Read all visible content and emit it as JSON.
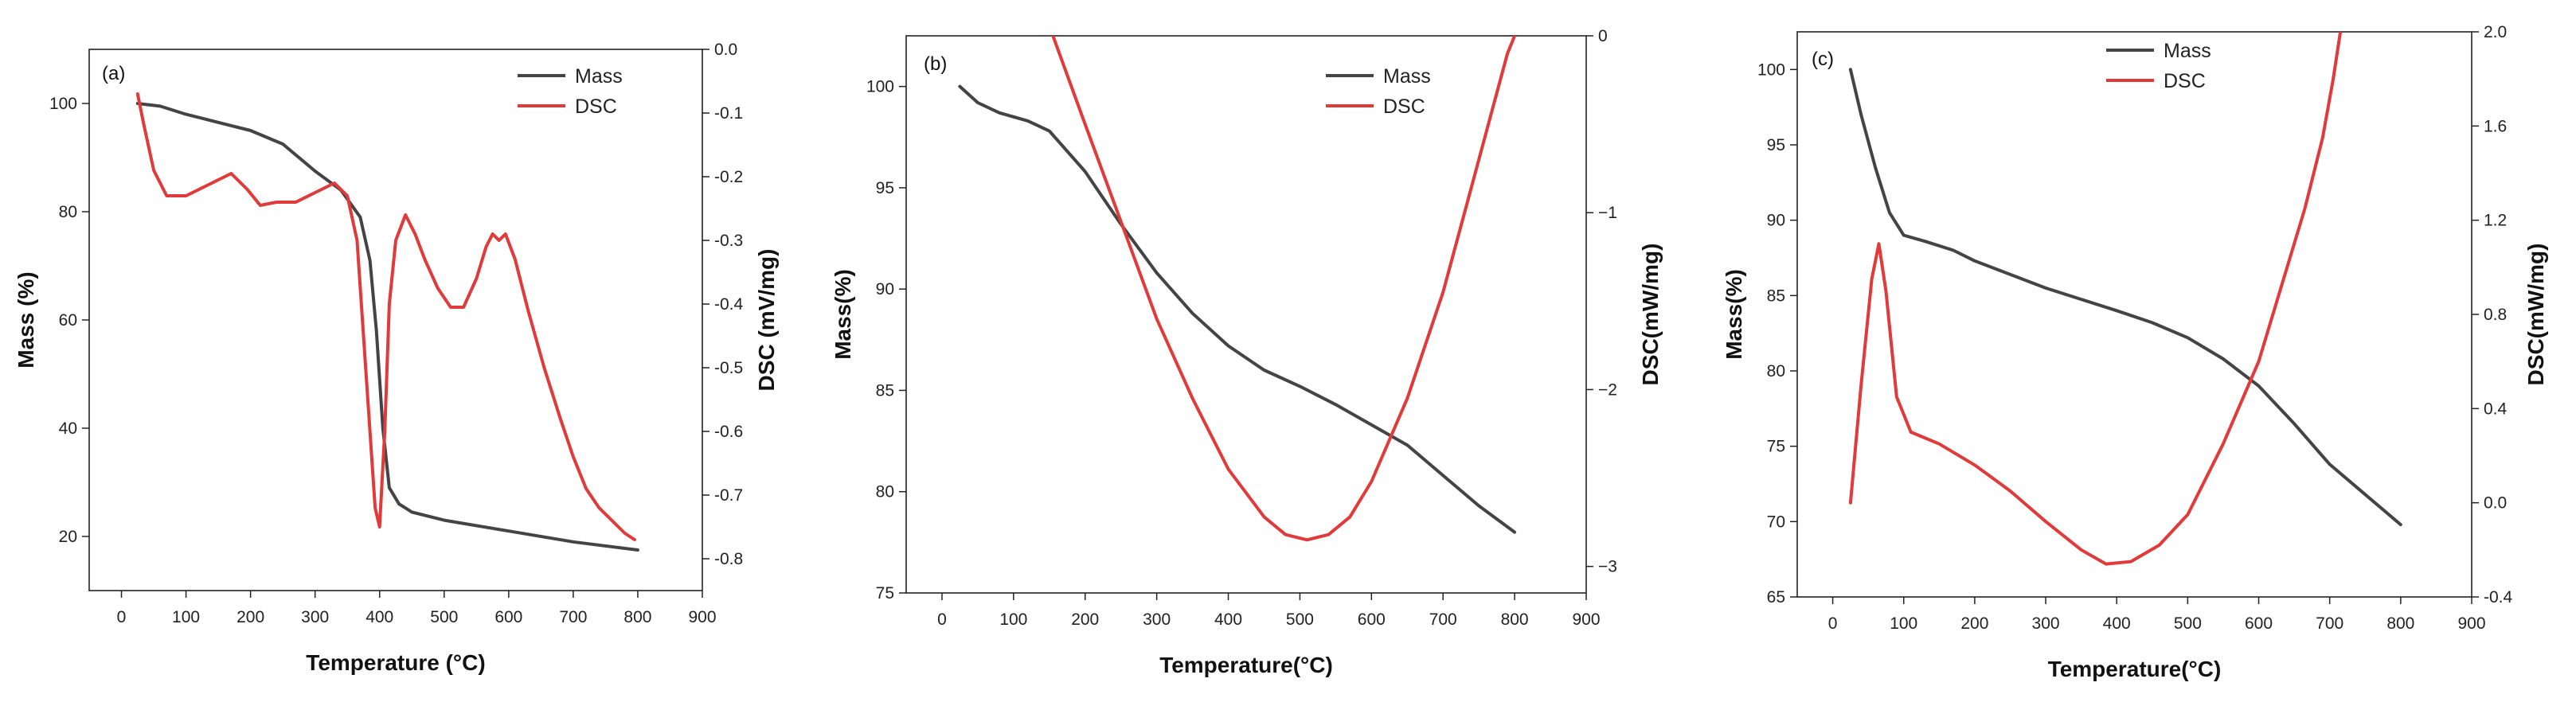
{
  "chart_data": [
    {
      "type": "line",
      "panel_label": "(a)",
      "xlabel": "Temperature (°C)",
      "ylabel": "Mass (%)",
      "y2label": "DSC (mV/mg)",
      "xlim": [
        -50,
        900
      ],
      "ylim": [
        10,
        110
      ],
      "y2lim": [
        -0.85,
        0.0
      ],
      "xticks": [
        0,
        100,
        200,
        300,
        400,
        500,
        600,
        700,
        800,
        900
      ],
      "yticks": [
        20,
        40,
        60,
        80,
        100
      ],
      "y2ticks": [
        -0.8,
        -0.7,
        -0.6,
        -0.5,
        -0.4,
        -0.3,
        -0.2,
        -0.1,
        0.0
      ],
      "xtick_labels": [
        "0",
        "100",
        "200",
        "300",
        "400",
        "500",
        "600",
        "700",
        "800",
        "900"
      ],
      "ytick_labels": [
        "20",
        "40",
        "60",
        "80",
        "100"
      ],
      "y2tick_labels": [
        "-0.8",
        "-0.7",
        "-0.6",
        "-0.5",
        "-0.4",
        "-0.3",
        "-0.2",
        "-0.1",
        "0.0"
      ],
      "legend": {
        "position": "top-right",
        "labels": [
          "Mass",
          "DSC"
        ]
      },
      "series": [
        {
          "name": "Mass",
          "axis": "left",
          "color": "#444444",
          "x": [
            25,
            60,
            100,
            150,
            200,
            250,
            300,
            340,
            370,
            385,
            395,
            405,
            415,
            430,
            450,
            500,
            600,
            700,
            800
          ],
          "y": [
            100,
            99.5,
            98,
            96.5,
            95,
            92.5,
            87.5,
            84,
            79,
            71,
            58,
            40,
            29,
            26,
            24.5,
            23,
            21,
            19,
            17.5
          ]
        },
        {
          "name": "DSC",
          "axis": "right",
          "color": "#e03a3a",
          "x": [
            25,
            35,
            50,
            70,
            100,
            140,
            170,
            195,
            215,
            240,
            270,
            300,
            330,
            350,
            365,
            375,
            385,
            393,
            400,
            408,
            415,
            425,
            440,
            455,
            470,
            490,
            510,
            530,
            550,
            565,
            575,
            585,
            595,
            610,
            630,
            655,
            680,
            700,
            720,
            740,
            760,
            780,
            795
          ],
          "y": [
            -0.07,
            -0.12,
            -0.19,
            -0.23,
            -0.23,
            -0.21,
            -0.195,
            -0.22,
            -0.245,
            -0.24,
            -0.24,
            -0.225,
            -0.21,
            -0.23,
            -0.3,
            -0.45,
            -0.6,
            -0.72,
            -0.75,
            -0.6,
            -0.4,
            -0.3,
            -0.26,
            -0.29,
            -0.33,
            -0.375,
            -0.405,
            -0.405,
            -0.36,
            -0.31,
            -0.29,
            -0.3,
            -0.29,
            -0.33,
            -0.41,
            -0.5,
            -0.58,
            -0.64,
            -0.69,
            -0.72,
            -0.74,
            -0.76,
            -0.77
          ]
        }
      ]
    },
    {
      "type": "line",
      "panel_label": "(b)",
      "xlabel": "Temperature(°C)",
      "ylabel": "Mass(%)",
      "y2label": "DSC(mW/mg)",
      "xlim": [
        -50,
        900
      ],
      "ylim": [
        75,
        102.5
      ],
      "y2lim": [
        -3.15,
        0.0
      ],
      "xticks": [
        0,
        100,
        200,
        300,
        400,
        500,
        600,
        700,
        800,
        900
      ],
      "yticks": [
        75,
        80,
        85,
        90,
        95,
        100
      ],
      "y2ticks": [
        -3,
        -2,
        -1,
        0
      ],
      "xtick_labels": [
        "0",
        "100",
        "200",
        "300",
        "400",
        "500",
        "600",
        "700",
        "800",
        "900"
      ],
      "ytick_labels": [
        "75",
        "80",
        "85",
        "90",
        "95",
        "100"
      ],
      "y2tick_labels": [
        "−3",
        "−2",
        "−1",
        "0"
      ],
      "legend": {
        "position": "top-right",
        "labels": [
          "Mass",
          "DSC"
        ]
      },
      "series": [
        {
          "name": "Mass",
          "axis": "left",
          "color": "#444444",
          "x": [
            25,
            50,
            80,
            120,
            150,
            200,
            250,
            300,
            350,
            400,
            450,
            500,
            550,
            600,
            650,
            700,
            750,
            800
          ],
          "y": [
            100,
            99.2,
            98.7,
            98.3,
            97.8,
            95.8,
            93.2,
            90.8,
            88.8,
            87.2,
            86,
            85.2,
            84.3,
            83.3,
            82.3,
            80.8,
            79.3,
            78
          ]
        },
        {
          "name": "DSC",
          "axis": "right",
          "color": "#e03a3a",
          "x": [
            155,
            200,
            250,
            300,
            350,
            400,
            450,
            480,
            510,
            540,
            570,
            600,
            650,
            700,
            740,
            770,
            790,
            800
          ],
          "y": [
            0.0,
            -0.5,
            -1.05,
            -1.6,
            -2.05,
            -2.45,
            -2.72,
            -2.82,
            -2.85,
            -2.82,
            -2.72,
            -2.52,
            -2.05,
            -1.45,
            -0.85,
            -0.4,
            -0.1,
            0.0
          ]
        }
      ]
    },
    {
      "type": "line",
      "panel_label": "(c)",
      "xlabel": "Temperature(°C)",
      "ylabel": "Mass(%)",
      "y2label": "DSC(mW/mg)",
      "xlim": [
        -50,
        900
      ],
      "ylim": [
        65,
        102.5
      ],
      "y2lim": [
        -0.4,
        2.0
      ],
      "xticks": [
        0,
        100,
        200,
        300,
        400,
        500,
        600,
        700,
        800,
        900
      ],
      "yticks": [
        65,
        70,
        75,
        80,
        85,
        90,
        95,
        100
      ],
      "y2ticks": [
        -0.4,
        0.0,
        0.4,
        0.8,
        1.2,
        1.6,
        2.0
      ],
      "xtick_labels": [
        "0",
        "100",
        "200",
        "300",
        "400",
        "500",
        "600",
        "700",
        "800",
        "900"
      ],
      "ytick_labels": [
        "65",
        "70",
        "75",
        "80",
        "85",
        "90",
        "95",
        "100"
      ],
      "y2tick_labels": [
        "-0.4",
        "0.0",
        "0.4",
        "0.8",
        "1.2",
        "1.6",
        "2.0"
      ],
      "legend": {
        "position": "top",
        "labels": [
          "Mass",
          "DSC"
        ]
      },
      "series": [
        {
          "name": "Mass",
          "axis": "left",
          "color": "#444444",
          "x": [
            25,
            40,
            60,
            80,
            100,
            130,
            170,
            200,
            300,
            400,
            450,
            500,
            550,
            600,
            650,
            700,
            750,
            800
          ],
          "y": [
            100,
            97,
            93.5,
            90.5,
            89,
            88.6,
            88,
            87.3,
            85.5,
            84,
            83.2,
            82.2,
            80.8,
            79,
            76.5,
            73.8,
            71.8,
            69.8
          ]
        },
        {
          "name": "DSC",
          "axis": "right",
          "color": "#e03a3a",
          "x": [
            25,
            40,
            55,
            65,
            75,
            90,
            110,
            150,
            200,
            250,
            300,
            350,
            385,
            420,
            460,
            500,
            550,
            600,
            640,
            665,
            690,
            705,
            715
          ],
          "y": [
            0.0,
            0.5,
            0.95,
            1.1,
            0.9,
            0.45,
            0.3,
            0.25,
            0.16,
            0.05,
            -0.08,
            -0.2,
            -0.26,
            -0.25,
            -0.18,
            -0.05,
            0.25,
            0.6,
            1.0,
            1.25,
            1.55,
            1.8,
            2.0
          ]
        }
      ]
    }
  ]
}
